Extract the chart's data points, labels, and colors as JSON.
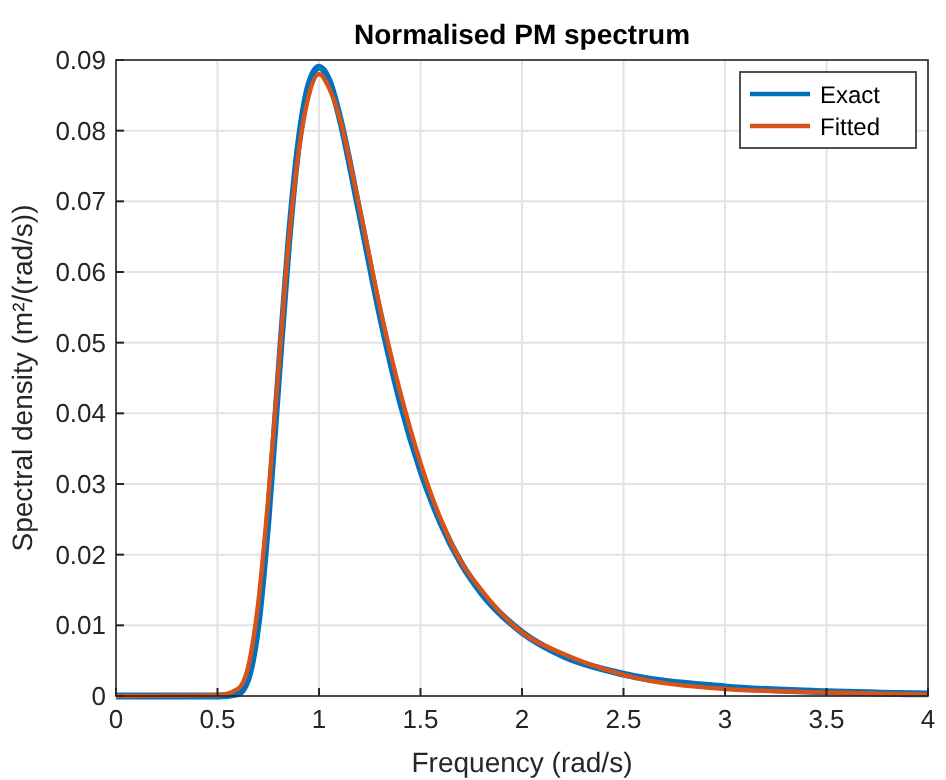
{
  "chart_data": {
    "type": "line",
    "title": "Normalised PM spectrum",
    "xlabel": "Frequency (rad/s)",
    "ylabel": "Spectral density (m²/(rad/s))",
    "xlim": [
      0,
      4
    ],
    "xticks": [
      0,
      0.5,
      1,
      1.5,
      2,
      2.5,
      3,
      3.5,
      4
    ],
    "ylim": [
      0,
      0.09
    ],
    "yticks": [
      0,
      0.01,
      0.02,
      0.03,
      0.04,
      0.05,
      0.06,
      0.07,
      0.08,
      0.09
    ],
    "grid": true,
    "legend": "top right",
    "series": [
      {
        "name": "Exact",
        "color": "#0072bd",
        "x": [
          0,
          0.5,
          0.6,
          0.65,
          0.7,
          0.75,
          0.8,
          0.85,
          0.9,
          0.95,
          1,
          1.05,
          1.1,
          1.2,
          1.3,
          1.4,
          1.5,
          1.6,
          1.7,
          1.8,
          2,
          2.2,
          2.5,
          3,
          3.5,
          4
        ],
        "values": [
          0,
          0,
          0.0003,
          0.0024,
          0.0101,
          0.0252,
          0.0448,
          0.0639,
          0.0783,
          0.0865,
          0.089,
          0.0871,
          0.0821,
          0.0683,
          0.054,
          0.0417,
          0.032,
          0.0245,
          0.0188,
          0.0146,
          0.009,
          0.0057,
          0.0031,
          0.0013,
          0.0006,
          0.0003
        ]
      },
      {
        "name": "Fitted",
        "color": "#d95319",
        "x": [
          0,
          0.5,
          0.6,
          0.65,
          0.7,
          0.75,
          0.8,
          0.85,
          0.9,
          0.95,
          1,
          1.05,
          1.1,
          1.2,
          1.3,
          1.4,
          1.5,
          1.6,
          1.7,
          1.8,
          2,
          2.2,
          2.5,
          3,
          3.5,
          4
        ],
        "values": [
          0,
          0.0001,
          0.001,
          0.004,
          0.013,
          0.028,
          0.046,
          0.064,
          0.077,
          0.085,
          0.088,
          0.086,
          0.082,
          0.069,
          0.055,
          0.043,
          0.033,
          0.025,
          0.019,
          0.015,
          0.009,
          0.006,
          0.003,
          0.001,
          0.0005,
          0.0002
        ]
      }
    ]
  }
}
